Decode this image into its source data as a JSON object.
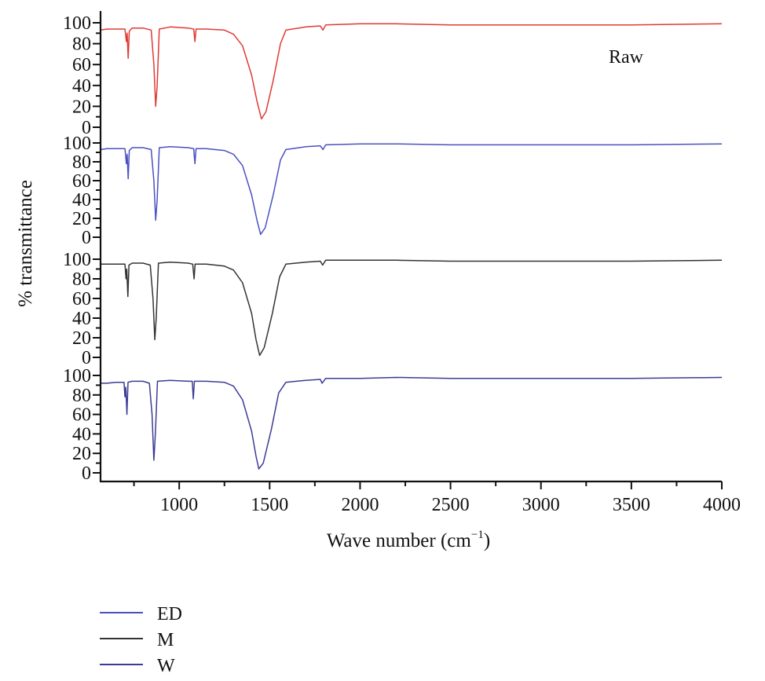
{
  "chart_data": {
    "type": "line",
    "layout": "stacked-panels",
    "xlabel": "Wave number (cm",
    "xlabel_sup": "−1",
    "xlabel_close": ")",
    "ylabel": "% transmittance",
    "xlim": [
      565,
      4000
    ],
    "x_ticks": [
      "1000",
      "1500",
      "2000",
      "2500",
      "3000",
      "3500",
      "4000"
    ],
    "y_ticks": [
      "0",
      "20",
      "40",
      "60",
      "80",
      "100"
    ],
    "ylim": [
      0,
      100
    ],
    "grid": false,
    "legend_placement": "bottom-left",
    "annotation": "Raw",
    "series": [
      {
        "name": "Raw",
        "color": "#e03a33",
        "in_legend": false,
        "points": [
          [
            565,
            93
          ],
          [
            600,
            94
          ],
          [
            650,
            94
          ],
          [
            700,
            94
          ],
          [
            708,
            82
          ],
          [
            712,
            90
          ],
          [
            718,
            66
          ],
          [
            724,
            92
          ],
          [
            740,
            95
          ],
          [
            800,
            95
          ],
          [
            845,
            93
          ],
          [
            860,
            60
          ],
          [
            870,
            20
          ],
          [
            878,
            40
          ],
          [
            890,
            94
          ],
          [
            950,
            96
          ],
          [
            1050,
            95
          ],
          [
            1080,
            94
          ],
          [
            1087,
            82
          ],
          [
            1093,
            94
          ],
          [
            1150,
            94
          ],
          [
            1250,
            93
          ],
          [
            1300,
            89
          ],
          [
            1350,
            78
          ],
          [
            1400,
            50
          ],
          [
            1430,
            25
          ],
          [
            1455,
            8
          ],
          [
            1480,
            15
          ],
          [
            1520,
            45
          ],
          [
            1560,
            80
          ],
          [
            1590,
            93
          ],
          [
            1700,
            96
          ],
          [
            1780,
            97
          ],
          [
            1795,
            93
          ],
          [
            1810,
            98
          ],
          [
            2000,
            99
          ],
          [
            2200,
            99
          ],
          [
            2500,
            98
          ],
          [
            3000,
            98
          ],
          [
            3500,
            98
          ],
          [
            4000,
            99
          ]
        ]
      },
      {
        "name": "ED",
        "color": "#4a50c2",
        "in_legend": true,
        "points": [
          [
            565,
            93
          ],
          [
            600,
            94
          ],
          [
            650,
            94
          ],
          [
            700,
            94
          ],
          [
            708,
            78
          ],
          [
            712,
            88
          ],
          [
            718,
            62
          ],
          [
            724,
            92
          ],
          [
            740,
            95
          ],
          [
            800,
            95
          ],
          [
            845,
            93
          ],
          [
            860,
            60
          ],
          [
            870,
            18
          ],
          [
            878,
            40
          ],
          [
            890,
            95
          ],
          [
            950,
            96
          ],
          [
            1050,
            95
          ],
          [
            1080,
            94
          ],
          [
            1087,
            78
          ],
          [
            1093,
            94
          ],
          [
            1150,
            94
          ],
          [
            1250,
            92
          ],
          [
            1300,
            88
          ],
          [
            1350,
            76
          ],
          [
            1400,
            45
          ],
          [
            1430,
            18
          ],
          [
            1450,
            3
          ],
          [
            1475,
            10
          ],
          [
            1520,
            45
          ],
          [
            1560,
            82
          ],
          [
            1590,
            93
          ],
          [
            1700,
            96
          ],
          [
            1780,
            97
          ],
          [
            1795,
            93
          ],
          [
            1810,
            98
          ],
          [
            2000,
            99
          ],
          [
            2200,
            99
          ],
          [
            2500,
            98
          ],
          [
            3000,
            98
          ],
          [
            3500,
            98
          ],
          [
            4000,
            99
          ]
        ]
      },
      {
        "name": "M",
        "color": "#333333",
        "in_legend": true,
        "points": [
          [
            565,
            95
          ],
          [
            600,
            95
          ],
          [
            650,
            95
          ],
          [
            700,
            95
          ],
          [
            706,
            80
          ],
          [
            710,
            90
          ],
          [
            716,
            62
          ],
          [
            722,
            94
          ],
          [
            740,
            96
          ],
          [
            800,
            96
          ],
          [
            840,
            94
          ],
          [
            855,
            60
          ],
          [
            865,
            18
          ],
          [
            873,
            40
          ],
          [
            885,
            96
          ],
          [
            950,
            97
          ],
          [
            1050,
            96
          ],
          [
            1075,
            95
          ],
          [
            1082,
            80
          ],
          [
            1088,
            95
          ],
          [
            1150,
            95
          ],
          [
            1250,
            93
          ],
          [
            1300,
            89
          ],
          [
            1350,
            76
          ],
          [
            1400,
            45
          ],
          [
            1425,
            18
          ],
          [
            1445,
            2
          ],
          [
            1470,
            10
          ],
          [
            1515,
            45
          ],
          [
            1555,
            82
          ],
          [
            1590,
            95
          ],
          [
            1700,
            97
          ],
          [
            1780,
            98
          ],
          [
            1793,
            94
          ],
          [
            1810,
            99
          ],
          [
            2000,
            99
          ],
          [
            2200,
            99
          ],
          [
            2500,
            98
          ],
          [
            3000,
            98
          ],
          [
            3500,
            98
          ],
          [
            4000,
            99
          ]
        ]
      },
      {
        "name": "W",
        "color": "#3c3c95",
        "in_legend": true,
        "points": [
          [
            565,
            92
          ],
          [
            600,
            92
          ],
          [
            650,
            93
          ],
          [
            695,
            93
          ],
          [
            700,
            78
          ],
          [
            705,
            88
          ],
          [
            711,
            60
          ],
          [
            717,
            93
          ],
          [
            740,
            94
          ],
          [
            800,
            94
          ],
          [
            835,
            92
          ],
          [
            850,
            60
          ],
          [
            860,
            13
          ],
          [
            868,
            40
          ],
          [
            880,
            94
          ],
          [
            950,
            95
          ],
          [
            1050,
            94
          ],
          [
            1072,
            94
          ],
          [
            1078,
            76
          ],
          [
            1084,
            94
          ],
          [
            1150,
            94
          ],
          [
            1250,
            93
          ],
          [
            1300,
            89
          ],
          [
            1350,
            75
          ],
          [
            1400,
            43
          ],
          [
            1425,
            17
          ],
          [
            1440,
            4
          ],
          [
            1465,
            10
          ],
          [
            1510,
            45
          ],
          [
            1550,
            82
          ],
          [
            1590,
            93
          ],
          [
            1700,
            95
          ],
          [
            1780,
            96
          ],
          [
            1790,
            92
          ],
          [
            1810,
            97
          ],
          [
            2000,
            97
          ],
          [
            2200,
            98
          ],
          [
            2500,
            97
          ],
          [
            3000,
            97
          ],
          [
            3500,
            97
          ],
          [
            4000,
            98
          ]
        ]
      }
    ]
  }
}
